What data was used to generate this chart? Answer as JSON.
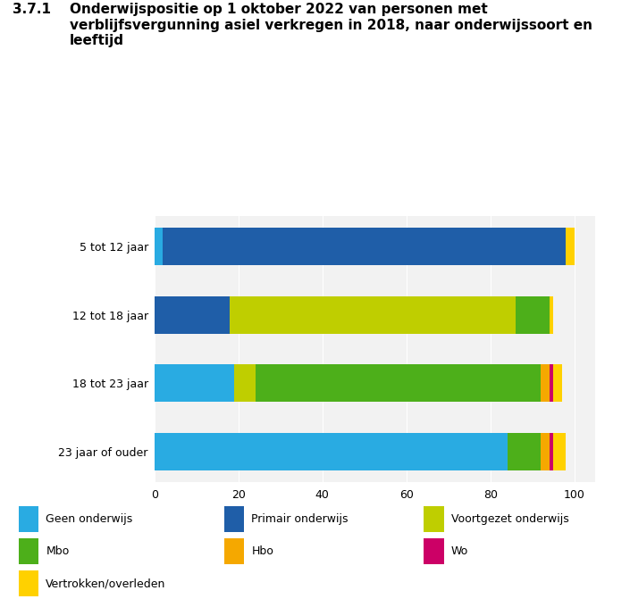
{
  "title_num": "3.7.1",
  "title_text": "Onderwijspositie op 1 oktober 2022 van personen met\nverblijfsvergunning asiel verkregen in 2018, naar onderwijssoort en\nleeftijd",
  "categories": [
    "23 jaar of ouder",
    "18 tot 23 jaar",
    "12 tot 18 jaar",
    "5 tot 12 jaar"
  ],
  "series": {
    "Geen onderwijs": [
      84,
      19,
      0,
      2
    ],
    "Primair onderwijs": [
      0,
      0,
      18,
      96
    ],
    "Voortgezet onderwijs": [
      0,
      5,
      68,
      0
    ],
    "Mbo": [
      8,
      68,
      8,
      0
    ],
    "Hbo": [
      2,
      2,
      0,
      0
    ],
    "Wo": [
      1,
      1,
      0,
      0
    ],
    "Vertrokken/overleden": [
      3,
      2,
      1,
      2
    ]
  },
  "colors": {
    "Geen onderwijs": "#29ABE2",
    "Primair onderwijs": "#1F5EA8",
    "Voortgezet onderwijs": "#BFCE00",
    "Mbo": "#4DAF1A",
    "Hbo": "#F5A800",
    "Wo": "#CC0066",
    "Vertrokken/overleden": "#FFD100"
  },
  "xlim": [
    0,
    105
  ],
  "xlabel": "%",
  "xticks": [
    0,
    20,
    40,
    60,
    80,
    100
  ],
  "background_plot": "#F2F2F2",
  "background_label_area": "#E8E8E8",
  "background_fig": "#FFFFFF",
  "bar_height": 0.55,
  "title_fontsize": 11,
  "axis_fontsize": 9,
  "legend_fontsize": 9
}
